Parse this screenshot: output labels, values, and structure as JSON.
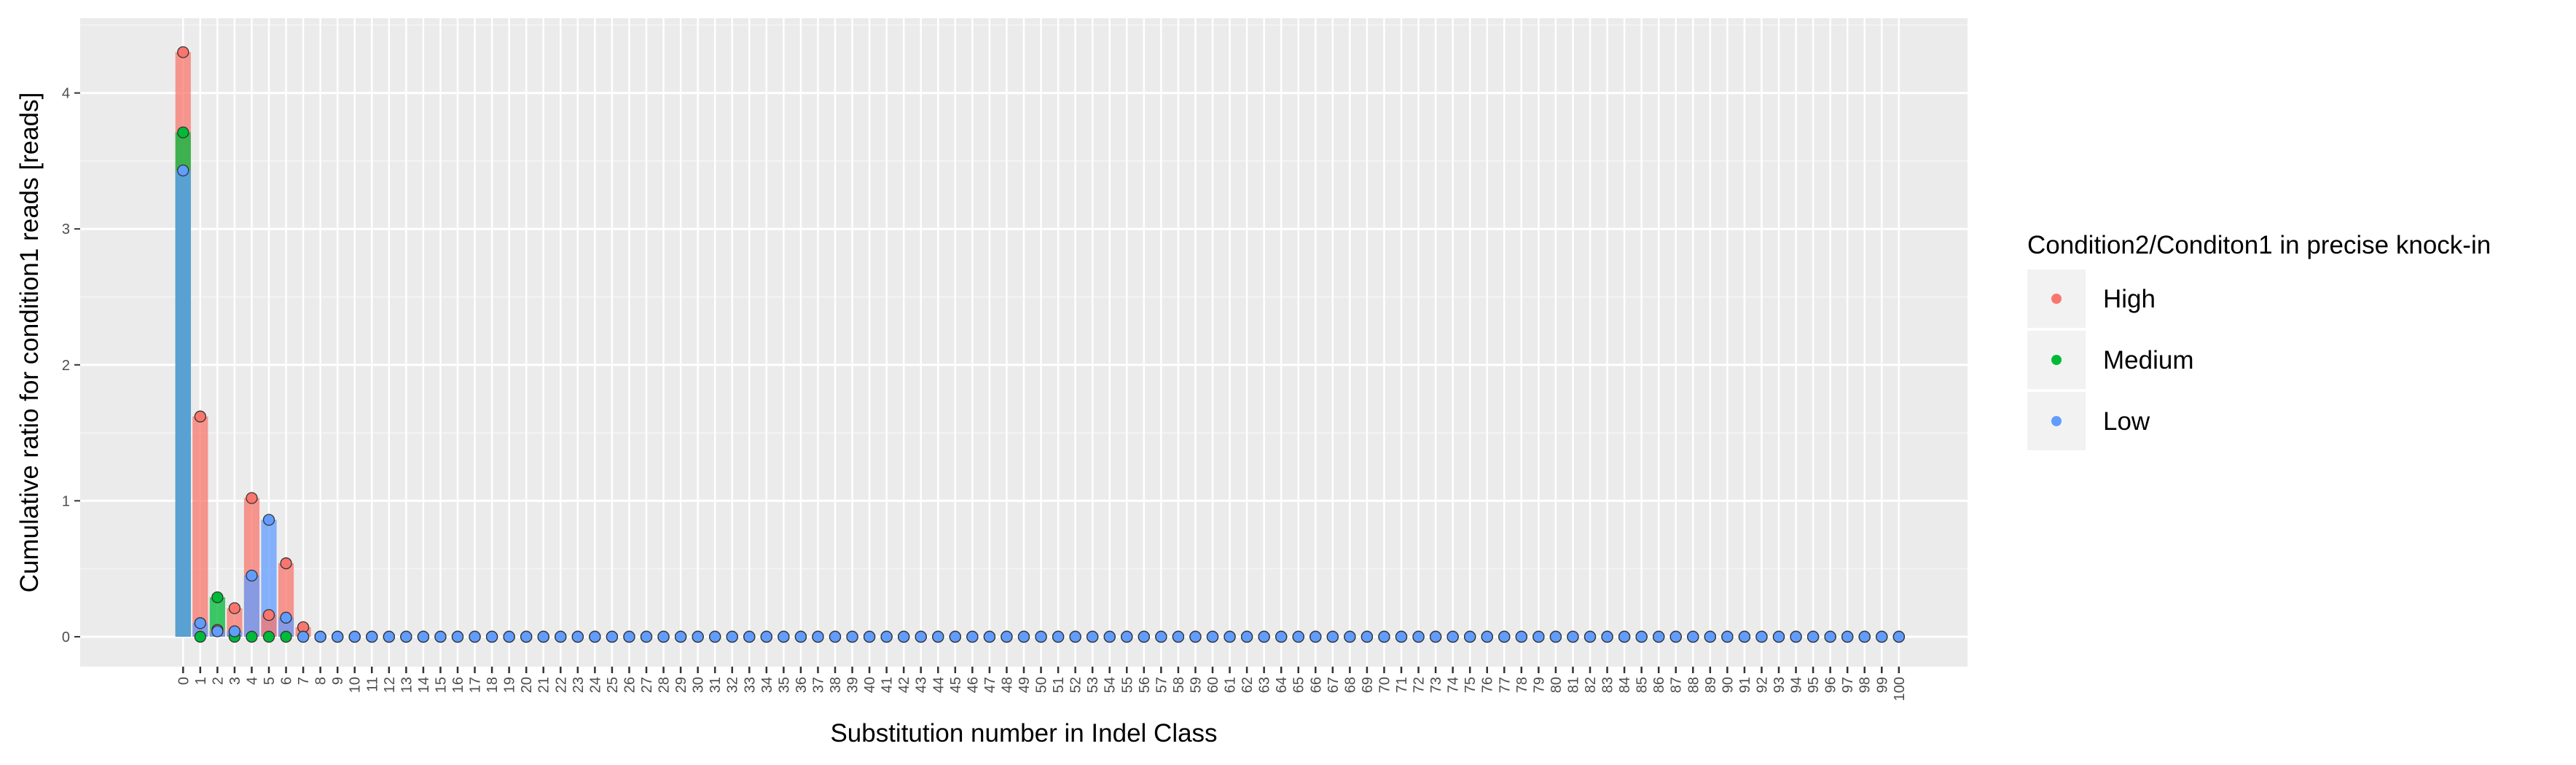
{
  "chart_data": {
    "type": "bar",
    "title": "",
    "xlabel": "Substitution number in Indel Class",
    "ylabel": "Cumulative ratio for condition1 reads [reads]",
    "ylim": [
      -0.22,
      4.55
    ],
    "yticks": [
      0,
      1,
      2,
      3,
      4
    ],
    "x": [
      0,
      1,
      2,
      3,
      4,
      5,
      6,
      7,
      8,
      9,
      10,
      11,
      12,
      13,
      14,
      15,
      16,
      17,
      18,
      19,
      20,
      21,
      22,
      23,
      24,
      25,
      26,
      27,
      28,
      29,
      30,
      31,
      32,
      33,
      34,
      35,
      36,
      37,
      38,
      39,
      40,
      41,
      42,
      43,
      44,
      45,
      46,
      47,
      48,
      49,
      50,
      51,
      52,
      53,
      54,
      55,
      56,
      57,
      58,
      59,
      60,
      61,
      62,
      63,
      64,
      65,
      66,
      67,
      68,
      69,
      70,
      71,
      72,
      73,
      74,
      75,
      76,
      77,
      78,
      79,
      80,
      81,
      82,
      83,
      84,
      85,
      86,
      87,
      88,
      89,
      90,
      91,
      92,
      93,
      94,
      95,
      96,
      97,
      98,
      99,
      100
    ],
    "xlim": [
      -6,
      104
    ],
    "grid": true,
    "legend": {
      "title": "Condition2/Conditon1 in precise knock-in",
      "position": "right",
      "entries": [
        "High",
        "Medium",
        "Low"
      ]
    },
    "series": [
      {
        "name": "High",
        "color": "#F8766D",
        "values": {
          "0": 4.3,
          "1": 1.62,
          "2": 0.05,
          "3": 0.21,
          "4": 1.02,
          "5": 0.16,
          "6": 0.54,
          "7": 0.07
        }
      },
      {
        "name": "Medium",
        "color": "#00BA38",
        "values": {
          "0": 3.71,
          "1": 0.0,
          "2": 0.29,
          "3": 0.0,
          "4": 0.0,
          "5": 0.0,
          "6": 0.0
        }
      },
      {
        "name": "Low",
        "color": "#619CFF",
        "values": {
          "0": 3.43,
          "1": 0.1,
          "2": 0.04,
          "3": 0.04,
          "4": 0.45,
          "5": 0.86,
          "6": 0.14,
          "7": 0.0
        }
      }
    ]
  }
}
